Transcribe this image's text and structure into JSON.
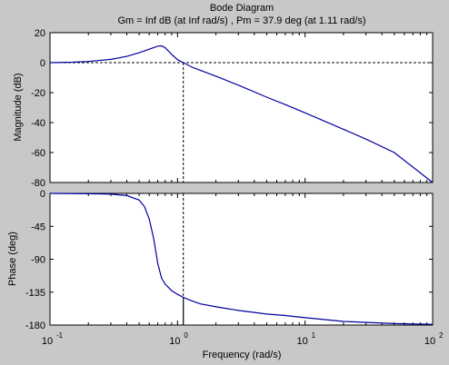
{
  "title": "Bode Diagram",
  "subtitle": "Gm = Inf dB (at Inf rad/s) ,  Pm = 37.9 deg (at 1.11 rad/s)",
  "colors": {
    "background": "#c8c8c8",
    "axes_background": "#ffffff",
    "line": "#0000a0",
    "margin_line": "#000000"
  },
  "chart_data": [
    {
      "type": "line",
      "panel": "magnitude",
      "ylabel": "Magnitude (dB)",
      "xscale": "log",
      "xlim": [
        0.1,
        100
      ],
      "ylim": [
        -80,
        20
      ],
      "yticks": [
        20,
        0,
        -20,
        -40,
        -60,
        -80
      ],
      "grid": false,
      "x": [
        0.1,
        0.15,
        0.2,
        0.3,
        0.4,
        0.5,
        0.6,
        0.7,
        0.75,
        0.8,
        0.9,
        1.0,
        1.11,
        1.3,
        1.5,
        2,
        3,
        5,
        7,
        10,
        20,
        30,
        50,
        100
      ],
      "y": [
        0,
        0.3,
        0.8,
        2.2,
        4.2,
        6.6,
        9.0,
        11.0,
        11.2,
        10.0,
        5.5,
        2.0,
        0,
        -3.0,
        -5.0,
        -9.0,
        -15.0,
        -23.0,
        -28.0,
        -33.5,
        -44.5,
        -51.0,
        -60.0,
        -80.0
      ],
      "reference_lines": {
        "y": 0,
        "x": 1.11
      }
    },
    {
      "type": "line",
      "panel": "phase",
      "xlabel": "Frequency  (rad/s)",
      "ylabel": "Phase (deg)",
      "xscale": "log",
      "xlim": [
        0.1,
        100
      ],
      "ylim": [
        -180,
        0
      ],
      "yticks": [
        0,
        -45,
        -90,
        -135,
        -180
      ],
      "xticks": [
        0.1,
        1,
        10,
        100
      ],
      "xtick_labels": [
        "10",
        "10",
        "10",
        "10"
      ],
      "xtick_exponents": [
        "-1",
        "0",
        "1",
        "2"
      ],
      "grid": false,
      "x": [
        0.1,
        0.2,
        0.3,
        0.4,
        0.5,
        0.55,
        0.6,
        0.65,
        0.7,
        0.75,
        0.8,
        0.9,
        1.0,
        1.11,
        1.3,
        1.5,
        2,
        3,
        5,
        7,
        10,
        20,
        50,
        100
      ],
      "y": [
        0,
        -0.5,
        -1,
        -3,
        -9,
        -18,
        -35,
        -62,
        -96,
        -116,
        -124,
        -133,
        -138,
        -142.1,
        -147,
        -151,
        -155,
        -160,
        -165,
        -167,
        -170,
        -175,
        -178,
        -179
      ],
      "reference_lines": {
        "y": -180,
        "x": 1.11,
        "phase_at_crossover": -142.1
      }
    }
  ]
}
